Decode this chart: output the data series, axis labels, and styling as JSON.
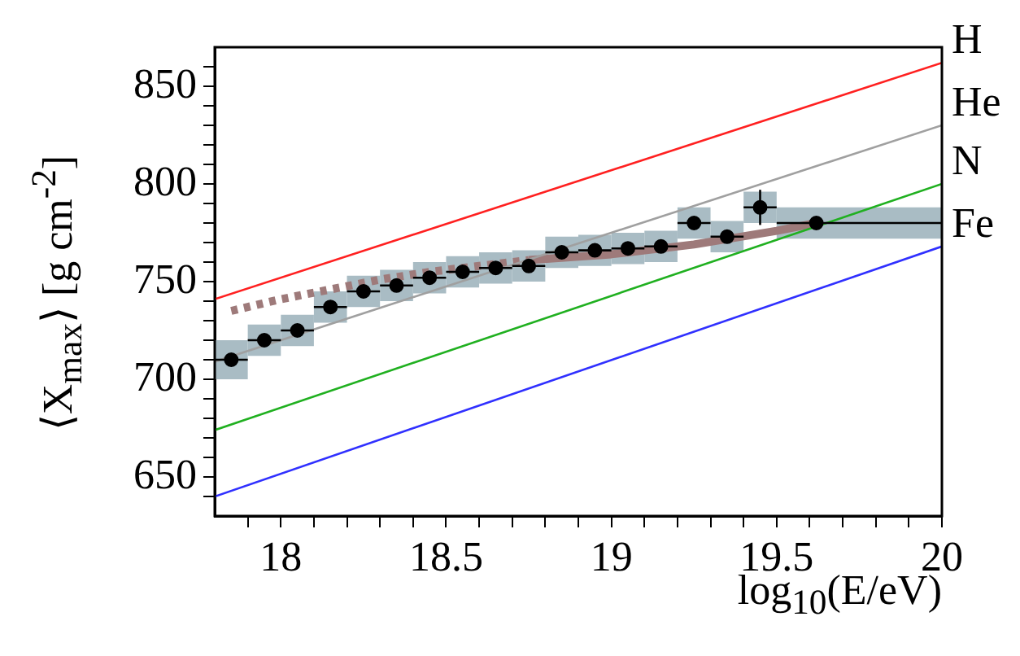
{
  "chart_data": {
    "type": "line",
    "xlabel": "log$_{10}$(E/eV)",
    "ylabel": "⟨X$_{max}$⟩ [g cm$^{-2}$]",
    "xlim": [
      17.8,
      20
    ],
    "ylim": [
      630,
      870
    ],
    "xticks": [
      {
        "value": 17.9,
        "label": null
      },
      18,
      {
        "value": 18.1,
        "label": null
      },
      {
        "value": 18.2,
        "label": null
      },
      {
        "value": 18.3,
        "label": null
      },
      {
        "value": 18.4,
        "label": null
      },
      18.5,
      {
        "value": 18.6,
        "label": null
      },
      {
        "value": 18.7,
        "label": null
      },
      {
        "value": 18.8,
        "label": null
      },
      {
        "value": 18.9,
        "label": null
      },
      19,
      {
        "value": 19.1,
        "label": null
      },
      {
        "value": 19.2,
        "label": null
      },
      {
        "value": 19.3,
        "label": null
      },
      {
        "value": 19.4,
        "label": null
      },
      19.5,
      {
        "value": 19.6,
        "label": null
      },
      {
        "value": 19.7,
        "label": null
      },
      {
        "value": 19.8,
        "label": null
      },
      {
        "value": 19.9,
        "label": null
      },
      20
    ],
    "yticks": [
      {
        "value": 640,
        "label": null
      },
      650,
      {
        "value": 660,
        "label": null
      },
      {
        "value": 670,
        "label": null
      },
      {
        "value": 680,
        "label": null
      },
      {
        "value": 690,
        "label": null
      },
      700,
      {
        "value": 710,
        "label": null
      },
      {
        "value": 720,
        "label": null
      },
      {
        "value": 730,
        "label": null
      },
      {
        "value": 740,
        "label": null
      },
      750,
      {
        "value": 760,
        "label": null
      },
      {
        "value": 770,
        "label": null
      },
      {
        "value": 780,
        "label": null
      },
      {
        "value": 790,
        "label": null
      },
      800,
      {
        "value": 810,
        "label": null
      },
      {
        "value": 820,
        "label": null
      },
      {
        "value": 830,
        "label": null
      },
      {
        "value": 840,
        "label": null
      },
      850,
      {
        "value": 860,
        "label": null
      }
    ],
    "grid": false,
    "legend": false,
    "series": [
      {
        "name": "H",
        "color": "#ff2020",
        "x": [
          17.8,
          20
        ],
        "values": [
          741,
          862
        ]
      },
      {
        "name": "He",
        "color": "#a0a0a0",
        "x": [
          17.8,
          20
        ],
        "values": [
          709,
          830
        ]
      },
      {
        "name": "N",
        "color": "#20b020",
        "x": [
          17.8,
          20
        ],
        "values": [
          674,
          800
        ]
      },
      {
        "name": "Fe",
        "color": "#3030ff",
        "x": [
          17.8,
          20
        ],
        "values": [
          640,
          768
        ]
      },
      {
        "color": "#9e7a7a",
        "line_style": "dotted",
        "x": [
          17.85,
          18.0,
          18.15,
          18.3,
          18.45,
          18.6,
          18.75
        ],
        "values": [
          735,
          741,
          746,
          751,
          755,
          758,
          761
        ]
      },
      {
        "color": "#9e7a7a",
        "line_style": "solid",
        "x": [
          18.75,
          19.0,
          19.25,
          19.5,
          19.62
        ],
        "values": [
          761,
          764,
          769,
          776,
          780
        ]
      },
      {
        "type": "scatter",
        "color": "#000000",
        "marker": "circle",
        "x": [
          17.85,
          17.95,
          18.05,
          18.15,
          18.25,
          18.35,
          18.45,
          18.55,
          18.65,
          18.75,
          18.85,
          18.95,
          19.05,
          19.15,
          19.25,
          19.35,
          19.45,
          19.62
        ],
        "values": [
          710,
          720,
          725,
          737,
          745,
          748,
          752,
          755,
          757,
          758,
          765,
          766,
          767,
          768,
          780,
          773,
          788,
          780
        ],
        "errors": [
          2,
          2,
          2,
          2,
          2,
          2,
          2,
          2,
          2,
          2,
          2,
          2,
          2,
          2,
          3,
          3,
          9,
          2
        ],
        "xerrors": [
          0.05,
          0.05,
          0.05,
          0.05,
          0.05,
          0.05,
          0.05,
          0.05,
          0.05,
          0.05,
          0.05,
          0.05,
          0.05,
          0.05,
          0.05,
          0.05,
          0.05,
          [
            19.5,
            20
          ]
        ]
      },
      {
        "type": "bar",
        "color": "#a9bcc4",
        "x": [
          17.85,
          17.95,
          18.05,
          18.15,
          18.25,
          18.35,
          18.45,
          18.55,
          18.65,
          18.75,
          18.85,
          18.95,
          19.05,
          19.15,
          19.25,
          19.35,
          19.45,
          19.75
        ],
        "base": [
          700,
          712,
          717,
          729,
          737,
          740,
          744,
          747,
          749,
          750,
          757,
          758,
          759,
          760,
          772,
          765,
          780,
          772
        ],
        "values": [
          20,
          16,
          16,
          16,
          16,
          16,
          16,
          16,
          16,
          16,
          16,
          16,
          16,
          16,
          16,
          16,
          16,
          16
        ]
      }
    ]
  }
}
